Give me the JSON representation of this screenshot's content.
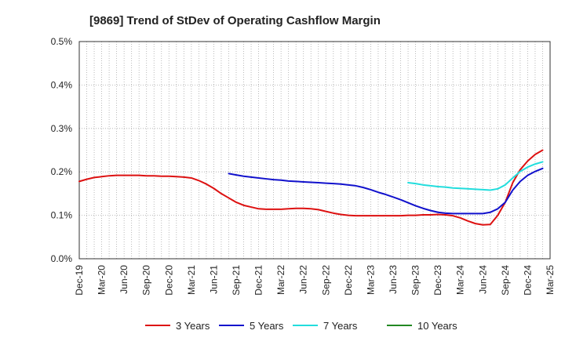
{
  "chart_data": {
    "type": "line",
    "title": "[9869]  Trend of StDev of Operating Cashflow Margin",
    "xlabel": "",
    "ylabel": "",
    "x_ticks": [
      "Dec-19",
      "Mar-20",
      "Jun-20",
      "Sep-20",
      "Dec-20",
      "Mar-21",
      "Jun-21",
      "Sep-21",
      "Dec-21",
      "Mar-22",
      "Jun-22",
      "Sep-22",
      "Dec-22",
      "Mar-23",
      "Jun-23",
      "Sep-23",
      "Dec-23",
      "Mar-24",
      "Jun-24",
      "Sep-24",
      "Dec-24",
      "Mar-25"
    ],
    "y_ticks": [
      "0.0%",
      "0.1%",
      "0.2%",
      "0.3%",
      "0.4%",
      "0.5%"
    ],
    "ylim": [
      0,
      0.5
    ],
    "grid": true,
    "legend_position": "bottom",
    "series": [
      {
        "name": "3 Years",
        "color": "#dd1111",
        "points": [
          [
            "Dec-19",
            0.178
          ],
          [
            "Jan-20",
            0.183
          ],
          [
            "Feb-20",
            0.187
          ],
          [
            "Mar-20",
            0.189
          ],
          [
            "Apr-20",
            0.191
          ],
          [
            "May-20",
            0.192
          ],
          [
            "Jun-20",
            0.192
          ],
          [
            "Jul-20",
            0.192
          ],
          [
            "Aug-20",
            0.192
          ],
          [
            "Sep-20",
            0.191
          ],
          [
            "Oct-20",
            0.191
          ],
          [
            "Nov-20",
            0.19
          ],
          [
            "Dec-20",
            0.19
          ],
          [
            "Jan-21",
            0.189
          ],
          [
            "Feb-21",
            0.188
          ],
          [
            "Mar-21",
            0.186
          ],
          [
            "Apr-21",
            0.18
          ],
          [
            "May-21",
            0.172
          ],
          [
            "Jun-21",
            0.162
          ],
          [
            "Jul-21",
            0.15
          ],
          [
            "Aug-21",
            0.14
          ],
          [
            "Sep-21",
            0.13
          ],
          [
            "Oct-21",
            0.123
          ],
          [
            "Nov-21",
            0.119
          ],
          [
            "Dec-21",
            0.115
          ],
          [
            "Jan-22",
            0.114
          ],
          [
            "Feb-22",
            0.114
          ],
          [
            "Mar-22",
            0.114
          ],
          [
            "Apr-22",
            0.115
          ],
          [
            "May-22",
            0.116
          ],
          [
            "Jun-22",
            0.116
          ],
          [
            "Jul-22",
            0.115
          ],
          [
            "Aug-22",
            0.113
          ],
          [
            "Sep-22",
            0.109
          ],
          [
            "Oct-22",
            0.105
          ],
          [
            "Nov-22",
            0.102
          ],
          [
            "Dec-22",
            0.1
          ],
          [
            "Jan-23",
            0.099
          ],
          [
            "Feb-23",
            0.099
          ],
          [
            "Mar-23",
            0.099
          ],
          [
            "Apr-23",
            0.099
          ],
          [
            "May-23",
            0.099
          ],
          [
            "Jun-23",
            0.099
          ],
          [
            "Jul-23",
            0.099
          ],
          [
            "Aug-23",
            0.1
          ],
          [
            "Sep-23",
            0.1
          ],
          [
            "Oct-23",
            0.101
          ],
          [
            "Nov-23",
            0.101
          ],
          [
            "Dec-23",
            0.102
          ],
          [
            "Jan-24",
            0.101
          ],
          [
            "Feb-24",
            0.099
          ],
          [
            "Mar-24",
            0.094
          ],
          [
            "Apr-24",
            0.087
          ],
          [
            "May-24",
            0.081
          ],
          [
            "Jun-24",
            0.078
          ],
          [
            "Jul-24",
            0.079
          ],
          [
            "Aug-24",
            0.1
          ],
          [
            "Sep-24",
            0.13
          ],
          [
            "Oct-24",
            0.175
          ],
          [
            "Nov-24",
            0.205
          ],
          [
            "Dec-24",
            0.225
          ],
          [
            "Jan-25",
            0.24
          ],
          [
            "Feb-25",
            0.25
          ]
        ]
      },
      {
        "name": "5 Years",
        "color": "#1111cc",
        "points": [
          [
            "Aug-21",
            0.196
          ],
          [
            "Sep-21",
            0.193
          ],
          [
            "Oct-21",
            0.19
          ],
          [
            "Nov-21",
            0.188
          ],
          [
            "Dec-21",
            0.186
          ],
          [
            "Jan-22",
            0.184
          ],
          [
            "Feb-22",
            0.182
          ],
          [
            "Mar-22",
            0.181
          ],
          [
            "Apr-22",
            0.179
          ],
          [
            "May-22",
            0.178
          ],
          [
            "Jun-22",
            0.177
          ],
          [
            "Jul-22",
            0.176
          ],
          [
            "Aug-22",
            0.175
          ],
          [
            "Sep-22",
            0.174
          ],
          [
            "Oct-22",
            0.173
          ],
          [
            "Nov-22",
            0.172
          ],
          [
            "Dec-22",
            0.17
          ],
          [
            "Jan-23",
            0.168
          ],
          [
            "Feb-23",
            0.164
          ],
          [
            "Mar-23",
            0.159
          ],
          [
            "Apr-23",
            0.153
          ],
          [
            "May-23",
            0.148
          ],
          [
            "Jun-23",
            0.142
          ],
          [
            "Jul-23",
            0.136
          ],
          [
            "Aug-23",
            0.129
          ],
          [
            "Sep-23",
            0.122
          ],
          [
            "Oct-23",
            0.116
          ],
          [
            "Nov-23",
            0.111
          ],
          [
            "Dec-23",
            0.107
          ],
          [
            "Jan-24",
            0.105
          ],
          [
            "Feb-24",
            0.104
          ],
          [
            "Mar-24",
            0.104
          ],
          [
            "Apr-24",
            0.104
          ],
          [
            "May-24",
            0.104
          ],
          [
            "Jun-24",
            0.104
          ],
          [
            "Jul-24",
            0.107
          ],
          [
            "Aug-24",
            0.115
          ],
          [
            "Sep-24",
            0.13
          ],
          [
            "Oct-24",
            0.158
          ],
          [
            "Nov-24",
            0.178
          ],
          [
            "Dec-24",
            0.192
          ],
          [
            "Jan-25",
            0.201
          ],
          [
            "Feb-25",
            0.208
          ]
        ]
      },
      {
        "name": "7 Years",
        "color": "#22dddd",
        "points": [
          [
            "Aug-23",
            0.175
          ],
          [
            "Sep-23",
            0.173
          ],
          [
            "Oct-23",
            0.17
          ],
          [
            "Nov-23",
            0.168
          ],
          [
            "Dec-23",
            0.166
          ],
          [
            "Jan-24",
            0.165
          ],
          [
            "Feb-24",
            0.163
          ],
          [
            "Mar-24",
            0.162
          ],
          [
            "Apr-24",
            0.161
          ],
          [
            "May-24",
            0.16
          ],
          [
            "Jun-24",
            0.159
          ],
          [
            "Jul-24",
            0.158
          ],
          [
            "Aug-24",
            0.161
          ],
          [
            "Sep-24",
            0.17
          ],
          [
            "Oct-24",
            0.186
          ],
          [
            "Nov-24",
            0.201
          ],
          [
            "Dec-24",
            0.211
          ],
          [
            "Jan-25",
            0.218
          ],
          [
            "Feb-25",
            0.223
          ]
        ]
      },
      {
        "name": "10 Years",
        "color": "#228822",
        "points": []
      }
    ]
  }
}
